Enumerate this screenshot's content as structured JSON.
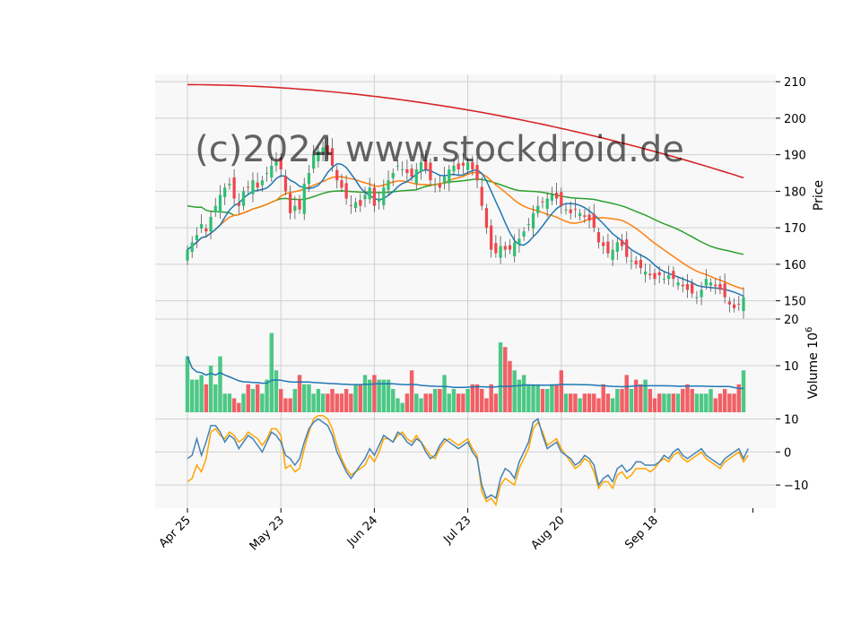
{
  "watermark": "(c)2024 www.stockdroid.de",
  "colors": {
    "up": "#2fbf71",
    "down": "#f0454b",
    "ma_short": "#1f77b4",
    "ma_mid": "#ff7f0e",
    "ma_long": "#2ca02c",
    "ma_200": "#d62728",
    "osc_main": "#4682b4",
    "osc_signal": "#ffa500",
    "panel_bg": "#f8f8f8",
    "grid": "#d0d0d0"
  },
  "chart_data": [
    {
      "type": "candlestick",
      "ylabel": "Price",
      "ylim": [
        145,
        212
      ],
      "yticks": [
        150,
        160,
        170,
        180,
        190,
        200,
        210
      ],
      "x_tick_labels": [
        "Apr 25",
        "May 23",
        "Jun 24",
        "Jul 23",
        "Aug 20",
        "Sep 18"
      ],
      "x_tick_index": [
        0,
        20,
        40,
        60,
        80,
        100
      ],
      "num_sessions": 120,
      "close_series": [
        164,
        166,
        168,
        171,
        169,
        173,
        176,
        179,
        181,
        182,
        178,
        176,
        180,
        181,
        183,
        181,
        183,
        185,
        187,
        188,
        186,
        180,
        174,
        176,
        175,
        182,
        185,
        190,
        191,
        192,
        190,
        187,
        183,
        181,
        178,
        176,
        177,
        176,
        179,
        181,
        176,
        178,
        181,
        183,
        185,
        187,
        186,
        185,
        184,
        186,
        188,
        186,
        183,
        182,
        181,
        184,
        186,
        187,
        186,
        187,
        188,
        186,
        183,
        176,
        170,
        164,
        163,
        165,
        164,
        164,
        166,
        167,
        169,
        171,
        174,
        176,
        177,
        178,
        179,
        178,
        176,
        175,
        174,
        175,
        174,
        173,
        172,
        170,
        166,
        165,
        163,
        164,
        166,
        165,
        162,
        161,
        160,
        159,
        158,
        157,
        156,
        157,
        156,
        157,
        156,
        155,
        154,
        153,
        152,
        151,
        153,
        156,
        155,
        154,
        153,
        151,
        149,
        148,
        149,
        151
      ]
    },
    {
      "type": "bar",
      "ylabel": "Volume  10^6",
      "unit_exponent": "6",
      "ylim": [
        0,
        20
      ],
      "yticks": [
        10,
        20
      ],
      "values": [
        12,
        7,
        7,
        8,
        6,
        10,
        6,
        12,
        4,
        4,
        3,
        2,
        4,
        6,
        5,
        6,
        4,
        7,
        17,
        9,
        5,
        3,
        3,
        5,
        8,
        6,
        6,
        4,
        5,
        4,
        4,
        5,
        4,
        4,
        5,
        4,
        6,
        6,
        8,
        7,
        8,
        7,
        7,
        7,
        5,
        3,
        2,
        4,
        9,
        4,
        3,
        4,
        4,
        5,
        5,
        8,
        4,
        5,
        4,
        4,
        5,
        6,
        6,
        5,
        3,
        6,
        4,
        15,
        14,
        11,
        9,
        7,
        8,
        6,
        6,
        6,
        5,
        5,
        6,
        6,
        9,
        4,
        4,
        4,
        3,
        4,
        4,
        4,
        3,
        6,
        4,
        3,
        5,
        5,
        8,
        5,
        7,
        6,
        7,
        5,
        3,
        4,
        4,
        4,
        4,
        4,
        5,
        6,
        5,
        4,
        4,
        4,
        5,
        3,
        4,
        5,
        4,
        4,
        6,
        9
      ]
    },
    {
      "type": "line",
      "ylim": [
        -17,
        12
      ],
      "yticks": [
        -10,
        0,
        10
      ],
      "series": [
        {
          "values": [
            -2,
            -1,
            4,
            -1,
            3,
            8,
            8,
            6,
            3,
            5,
            4,
            1,
            3,
            5,
            4,
            2,
            0,
            3,
            6,
            5,
            3,
            -1,
            -2,
            -4,
            -2,
            3,
            7,
            9,
            10,
            9,
            8,
            5,
            0,
            -3,
            -6,
            -8,
            -6,
            -4,
            -2,
            1,
            -1,
            2,
            5,
            4,
            3,
            6,
            5,
            3,
            2,
            4,
            3,
            0,
            -2,
            -1,
            2,
            4,
            3,
            2,
            1,
            2,
            3,
            0,
            -2,
            -10,
            -14,
            -13,
            -14,
            -8,
            -5,
            -6,
            -8,
            -3,
            0,
            3,
            9,
            10,
            5,
            1,
            2,
            3,
            0,
            -1,
            -2,
            -4,
            -3,
            -1,
            -2,
            -4,
            -10,
            -8,
            -7,
            -9,
            -5,
            -4,
            -6,
            -5,
            -3,
            -3,
            -4,
            -4,
            -4,
            -3,
            -1,
            -2,
            0,
            1,
            -1,
            -2,
            -1,
            0,
            1,
            -1,
            -2,
            -3,
            -4,
            -2,
            -1,
            0,
            1,
            -2,
            1
          ]
        },
        {
          "values": [
            -9,
            -8,
            -4,
            -6,
            -2,
            6,
            7,
            5,
            4,
            6,
            5,
            3,
            4,
            6,
            5,
            4,
            2,
            4,
            7,
            7,
            5,
            -5,
            -4,
            -6,
            -5,
            1,
            6,
            10,
            11,
            11,
            10,
            7,
            2,
            -2,
            -5,
            -7,
            -6,
            -5,
            -4,
            -1,
            -3,
            0,
            4,
            4,
            3,
            5,
            6,
            4,
            3,
            5,
            3,
            1,
            -1,
            -2,
            1,
            3,
            4,
            3,
            2,
            3,
            4,
            1,
            -1,
            -12,
            -15,
            -14,
            -16,
            -10,
            -8,
            -9,
            -10,
            -5,
            -2,
            1,
            7,
            9,
            6,
            2,
            3,
            4,
            1,
            -1,
            -3,
            -5,
            -4,
            -2,
            -3,
            -6,
            -11,
            -9,
            -9,
            -11,
            -7,
            -6,
            -8,
            -7,
            -5,
            -5,
            -5,
            -6,
            -5,
            -3,
            -2,
            -3,
            -1,
            0,
            -2,
            -3,
            -2,
            -1,
            0,
            -2,
            -3,
            -4,
            -5,
            -3,
            -2,
            -1,
            0,
            -3,
            -1
          ]
        }
      ]
    }
  ]
}
